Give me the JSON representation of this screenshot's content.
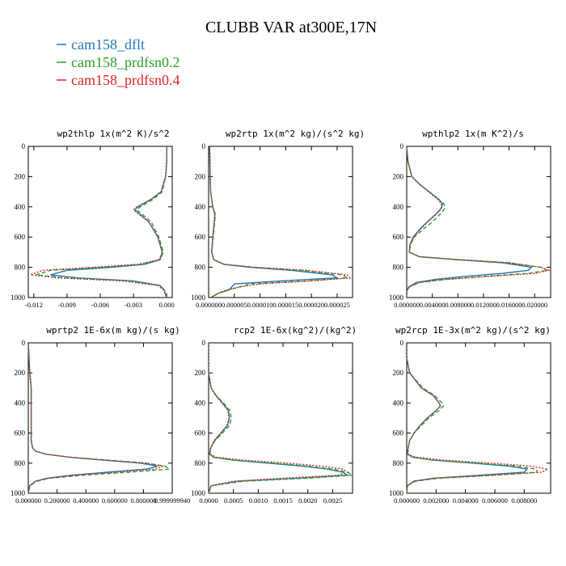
{
  "figure": {
    "title": "CLUBB VAR at300E,17N",
    "legend": [
      {
        "label": "cam158_dflt",
        "color": "#1f77b4"
      },
      {
        "label": "cam158_prdfsn0.2",
        "color": "#2ca02c"
      },
      {
        "label": "cam158_prdfsn0.4",
        "color": "#d62728"
      }
    ]
  },
  "chart_data": [
    {
      "type": "line",
      "title": "wp2thlp   1x(m^2 K)/s^2",
      "xlim": [
        -0.0125,
        0.0005
      ],
      "ylim": [
        1000,
        0
      ],
      "xticks": [
        -0.012,
        -0.009,
        -0.006,
        -0.003,
        0.0
      ],
      "xtick_labels": [
        "-0.012",
        "-0.009",
        "-0.006",
        "-0.003",
        "0.000"
      ],
      "yticks": [
        0,
        200,
        400,
        600,
        800,
        1000
      ],
      "y": [
        0,
        100,
        200,
        300,
        350,
        400,
        420,
        450,
        500,
        600,
        700,
        750,
        780,
        800,
        820,
        850,
        870,
        890,
        920,
        950,
        980,
        1000
      ],
      "series": [
        {
          "name": "cam158_dflt",
          "values": [
            0.0,
            0.0,
            -0.0001,
            -0.0005,
            -0.0014,
            -0.0026,
            -0.0029,
            -0.0024,
            -0.0016,
            -0.0008,
            -0.0004,
            -0.0006,
            -0.002,
            -0.005,
            -0.009,
            -0.0105,
            -0.008,
            -0.003,
            -0.0006,
            -0.0002,
            -0.0001,
            0.0
          ]
        },
        {
          "name": "cam158_prdfsn0.2",
          "values": [
            0.0,
            0.0,
            -0.0001,
            -0.0004,
            -0.0012,
            -0.0024,
            -0.0027,
            -0.0022,
            -0.0014,
            -0.0007,
            -0.0003,
            -0.0006,
            -0.0024,
            -0.006,
            -0.0105,
            -0.0118,
            -0.0092,
            -0.0035,
            -0.0007,
            -0.0002,
            -0.0001,
            0.0
          ]
        },
        {
          "name": "cam158_prdfsn0.4",
          "values": [
            0.0,
            0.0,
            -0.0001,
            -0.0005,
            -0.0014,
            -0.0027,
            -0.003,
            -0.0025,
            -0.0016,
            -0.0008,
            -0.0004,
            -0.0007,
            -0.0026,
            -0.0066,
            -0.0112,
            -0.0123,
            -0.0098,
            -0.004,
            -0.0008,
            -0.0003,
            -0.0001,
            0.0
          ]
        }
      ]
    },
    {
      "type": "line",
      "title": "wp2rtp   1x(m^2 kg)/(s^2 kg)",
      "xlim": [
        0.0,
        2.8e-05
      ],
      "ylim": [
        1000,
        0
      ],
      "xticks": [
        0.0,
        5e-06,
        1e-05,
        1.5e-05,
        2e-05,
        2.5e-05
      ],
      "xtick_labels": [
        "0.000000",
        "0.000005",
        "0.000010",
        "0.000015",
        "0.000020",
        "0.000025"
      ],
      "yticks": [
        0,
        200,
        400,
        600,
        800,
        1000
      ],
      "y": [
        0,
        200,
        300,
        400,
        450,
        500,
        600,
        700,
        750,
        780,
        800,
        820,
        850,
        870,
        890,
        910,
        930,
        950,
        970,
        1000
      ],
      "series": [
        {
          "name": "cam158_dflt",
          "values": [
            2e-07,
            3e-07,
            4e-07,
            8e-07,
            1.2e-06,
            1.1e-06,
            8e-07,
            6e-07,
            1e-06,
            3e-06,
            8e-06,
            1.6e-05,
            2.4e-05,
            2.5e-05,
            1.4e-05,
            5e-06,
            4.5e-06,
            4e-06,
            2e-06,
            4e-07
          ]
        },
        {
          "name": "cam158_prdfsn0.2",
          "values": [
            2e-07,
            3e-07,
            4e-07,
            8e-07,
            1.3e-06,
            1.2e-06,
            9e-07,
            6e-07,
            1e-06,
            3e-06,
            9e-06,
            1.8e-05,
            2.6e-05,
            2.7e-05,
            1.9e-05,
            8e-06,
            6e-06,
            4e-06,
            2e-06,
            4e-07
          ]
        },
        {
          "name": "cam158_prdfsn0.4",
          "values": [
            2e-07,
            3e-07,
            4e-07,
            8e-07,
            1.2e-06,
            1.1e-06,
            8e-07,
            6e-07,
            1e-06,
            3e-06,
            9e-06,
            1.9e-05,
            2.7e-05,
            2.75e-05,
            2e-05,
            1e-05,
            6e-06,
            3.5e-06,
            2e-06,
            4e-07
          ]
        }
      ]
    },
    {
      "type": "line",
      "title": "wpthlp2   1x(m K^2)/s",
      "xlim": [
        0.0,
        0.0225
      ],
      "ylim": [
        1000,
        0
      ],
      "xticks": [
        0.0,
        0.004,
        0.008,
        0.012,
        0.016,
        0.02
      ],
      "xtick_labels": [
        "0.000000",
        "0.004000",
        "0.008000",
        "0.012000",
        "0.016000",
        "0.020000"
      ],
      "yticks": [
        0,
        200,
        400,
        600,
        800,
        1000
      ],
      "y": [
        0,
        100,
        200,
        250,
        300,
        350,
        380,
        400,
        420,
        450,
        500,
        550,
        600,
        650,
        700,
        730,
        750,
        770,
        800,
        820,
        840,
        860,
        880,
        900,
        930,
        960,
        1000
      ],
      "series": [
        {
          "name": "cam158_dflt",
          "values": [
            0.0,
            0.0002,
            0.0008,
            0.002,
            0.0035,
            0.005,
            0.0056,
            0.0055,
            0.0052,
            0.0045,
            0.0032,
            0.002,
            0.001,
            0.0005,
            0.0004,
            0.002,
            0.008,
            0.015,
            0.0195,
            0.019,
            0.015,
            0.009,
            0.0045,
            0.0015,
            0.0003,
            0.0,
            0.0
          ]
        },
        {
          "name": "cam158_prdfsn0.2",
          "values": [
            0.0,
            0.0002,
            0.0008,
            0.002,
            0.0035,
            0.005,
            0.0058,
            0.006,
            0.0058,
            0.0052,
            0.004,
            0.0025,
            0.0012,
            0.0006,
            0.0004,
            0.002,
            0.0085,
            0.016,
            0.021,
            0.022,
            0.019,
            0.012,
            0.006,
            0.002,
            0.0004,
            0.0,
            0.0
          ]
        },
        {
          "name": "cam158_prdfsn0.4",
          "values": [
            0.0,
            0.0002,
            0.0008,
            0.002,
            0.0034,
            0.0048,
            0.0054,
            0.0055,
            0.0053,
            0.0046,
            0.0033,
            0.0021,
            0.0011,
            0.0005,
            0.0004,
            0.002,
            0.0085,
            0.016,
            0.021,
            0.0222,
            0.02,
            0.013,
            0.006,
            0.002,
            0.0004,
            0.0,
            0.0
          ]
        }
      ]
    },
    {
      "type": "line",
      "title": "wprtp2   1E-6x(m kg)/(s kg)",
      "xlim": [
        0.0,
        1.0
      ],
      "ylim": [
        1000,
        0
      ],
      "xticks": [
        0.0,
        0.2,
        0.4,
        0.6,
        0.8,
        1.0
      ],
      "xtick_labels": [
        "0.000000",
        "0.200000",
        "0.400000",
        "0.600000",
        "0.800000",
        "0.999999940"
      ],
      "yticks": [
        0,
        200,
        400,
        600,
        800,
        1000
      ],
      "y": [
        0,
        200,
        300,
        400,
        500,
        600,
        650,
        700,
        720,
        740,
        760,
        780,
        800,
        820,
        840,
        860,
        880,
        900,
        920,
        950,
        1000
      ],
      "series": [
        {
          "name": "cam158_dflt",
          "values": [
            0.0,
            0.01,
            0.02,
            0.02,
            0.02,
            0.02,
            0.02,
            0.03,
            0.05,
            0.12,
            0.28,
            0.52,
            0.78,
            0.9,
            0.82,
            0.55,
            0.3,
            0.13,
            0.05,
            0.01,
            0.0
          ]
        },
        {
          "name": "cam158_prdfsn0.2",
          "values": [
            0.0,
            0.01,
            0.02,
            0.02,
            0.02,
            0.02,
            0.02,
            0.03,
            0.05,
            0.12,
            0.29,
            0.55,
            0.82,
            0.95,
            0.98,
            0.7,
            0.38,
            0.15,
            0.06,
            0.01,
            0.0
          ]
        },
        {
          "name": "cam158_prdfsn0.4",
          "values": [
            0.0,
            0.01,
            0.02,
            0.02,
            0.02,
            0.02,
            0.02,
            0.03,
            0.05,
            0.12,
            0.29,
            0.55,
            0.82,
            0.94,
            0.88,
            0.62,
            0.34,
            0.14,
            0.05,
            0.01,
            0.0
          ]
        }
      ]
    },
    {
      "type": "line",
      "title": "rcp2   1E-6x(kg^2)/(kg^2)",
      "xlim": [
        0.0,
        0.0029
      ],
      "ylim": [
        1000,
        0
      ],
      "xticks": [
        0.0,
        0.0005,
        0.001,
        0.0015,
        0.002,
        0.0025
      ],
      "xtick_labels": [
        "0.0000",
        "0.0005",
        "0.0010",
        "0.0015",
        "0.0020",
        "0.0025"
      ],
      "yticks": [
        0,
        200,
        400,
        600,
        800,
        1000
      ],
      "y": [
        0,
        200,
        300,
        350,
        400,
        450,
        500,
        550,
        600,
        650,
        700,
        740,
        760,
        780,
        800,
        820,
        840,
        860,
        880,
        900,
        920,
        950,
        1000
      ],
      "series": [
        {
          "name": "cam158_dflt",
          "values": [
            0.0,
            0.0,
            5e-05,
            0.00015,
            0.00028,
            0.0004,
            0.00042,
            0.00038,
            0.00025,
            0.00012,
            4e-05,
            2e-05,
            0.0001,
            0.0005,
            0.0012,
            0.0019,
            0.0024,
            0.0027,
            0.0028,
            0.0018,
            0.0006,
            5e-05,
            0.0
          ]
        },
        {
          "name": "cam158_prdfsn0.2",
          "values": [
            0.0,
            0.0,
            5e-05,
            0.00015,
            0.0003,
            0.00043,
            0.00046,
            0.00042,
            0.00028,
            0.00013,
            4e-05,
            2e-05,
            0.0001,
            0.0005,
            0.0013,
            0.002,
            0.0025,
            0.0028,
            0.0029,
            0.002,
            0.0007,
            5e-05,
            0.0
          ]
        },
        {
          "name": "cam158_prdfsn0.4",
          "values": [
            0.0,
            0.0,
            5e-05,
            0.00014,
            0.00027,
            0.00039,
            0.00041,
            0.00037,
            0.00024,
            0.00011,
            4e-05,
            3e-05,
            0.00015,
            0.0007,
            0.0016,
            0.0023,
            0.0027,
            0.0028,
            0.0026,
            0.0015,
            0.0005,
            5e-05,
            0.0
          ]
        }
      ]
    },
    {
      "type": "line",
      "title": "wp2rcp   1E-3x(m^2 kg)/(s^2 kg)",
      "xlim": [
        0.0,
        0.0098
      ],
      "ylim": [
        1000,
        0
      ],
      "xticks": [
        0.0,
        0.002,
        0.004,
        0.006,
        0.008
      ],
      "xtick_labels": [
        "0.000000",
        "0.002000",
        "0.004000",
        "0.006000",
        "0.008000"
      ],
      "yticks": [
        0,
        200,
        400,
        600,
        800,
        1000
      ],
      "y": [
        0,
        100,
        200,
        300,
        350,
        400,
        420,
        450,
        500,
        550,
        600,
        650,
        700,
        740,
        760,
        780,
        800,
        820,
        840,
        860,
        880,
        900,
        920,
        950,
        1000
      ],
      "series": [
        {
          "name": "cam158_dflt",
          "values": [
            0.0,
            0.0,
            0.0002,
            0.001,
            0.0018,
            0.0022,
            0.0023,
            0.002,
            0.0014,
            0.0009,
            0.0005,
            0.0002,
            0.0001,
            5e-05,
            0.0004,
            0.0018,
            0.0045,
            0.007,
            0.0082,
            0.008,
            0.005,
            0.0018,
            0.0005,
            5e-05,
            0.0
          ]
        },
        {
          "name": "cam158_prdfsn0.2",
          "values": [
            0.0,
            0.0,
            0.0002,
            0.0011,
            0.0019,
            0.0024,
            0.0025,
            0.0022,
            0.0015,
            0.001,
            0.0005,
            0.0002,
            0.0001,
            5e-05,
            0.0004,
            0.0018,
            0.0048,
            0.0075,
            0.0088,
            0.0089,
            0.006,
            0.0022,
            0.0006,
            5e-05,
            0.0
          ]
        },
        {
          "name": "cam158_prdfsn0.4",
          "values": [
            0.0,
            0.0,
            0.0002,
            0.001,
            0.0018,
            0.0022,
            0.0023,
            0.002,
            0.0014,
            0.0009,
            0.0005,
            0.0002,
            0.0001,
            0.0001,
            0.0006,
            0.0025,
            0.0058,
            0.0085,
            0.0096,
            0.0092,
            0.006,
            0.002,
            0.0005,
            5e-05,
            0.0
          ]
        }
      ]
    }
  ]
}
